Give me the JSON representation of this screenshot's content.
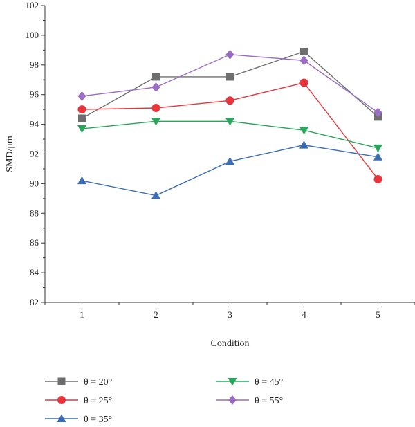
{
  "chart_data": {
    "type": "line",
    "title": "",
    "xlabel": "Condition",
    "ylabel": "SMD/μm",
    "x": [
      1,
      2,
      3,
      4,
      5
    ],
    "xlim": [
      0.5,
      5.5
    ],
    "ylim": [
      82,
      102
    ],
    "yticks": [
      82,
      84,
      86,
      88,
      90,
      92,
      94,
      96,
      98,
      100,
      102
    ],
    "xticks": [
      1,
      2,
      3,
      4,
      5
    ],
    "grid": false,
    "legend_position": "bottom",
    "series": [
      {
        "name": "θ = 20°",
        "marker": "square",
        "color": "#6e6e6e",
        "values": [
          94.4,
          97.2,
          97.2,
          98.9,
          94.5
        ]
      },
      {
        "name": "θ = 25°",
        "marker": "circle",
        "color": "#e8343b",
        "values": [
          95.0,
          95.1,
          95.6,
          96.8,
          90.3
        ]
      },
      {
        "name": "θ = 35°",
        "marker": "triangle",
        "color": "#3a6db5",
        "values": [
          90.2,
          89.2,
          91.5,
          92.6,
          91.8
        ]
      },
      {
        "name": "θ = 45°",
        "marker": "triangle-down",
        "color": "#27a55a",
        "values": [
          93.7,
          94.2,
          94.2,
          93.6,
          92.4
        ]
      },
      {
        "name": "θ = 55°",
        "marker": "diamond",
        "color": "#9b6cc4",
        "values": [
          95.9,
          96.5,
          98.7,
          98.3,
          94.8
        ]
      }
    ]
  }
}
